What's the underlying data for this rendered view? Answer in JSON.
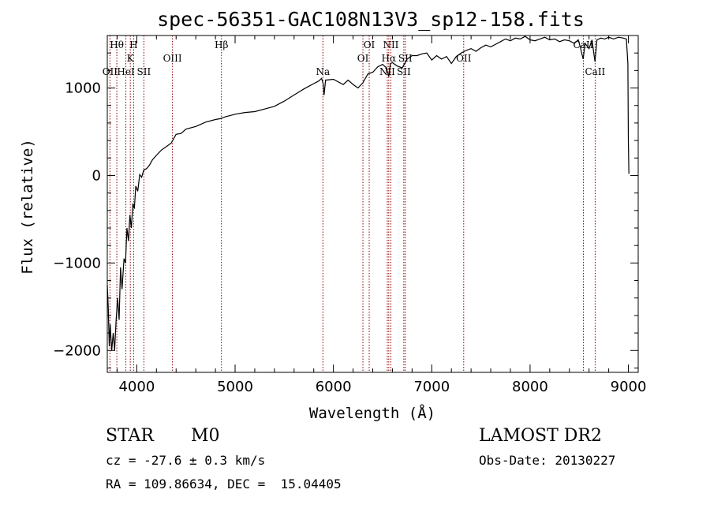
{
  "chart_data": {
    "type": "line",
    "title": "spec-56351-GAC108N13V3_sp12-158.fits",
    "xlabel": "Wavelength (Å)",
    "ylabel": "Flux (relative)",
    "xlim": [
      3700,
      9100
    ],
    "ylim": [
      -2250,
      1600
    ],
    "x_ticks": [
      4000,
      5000,
      6000,
      7000,
      8000,
      9000
    ],
    "y_ticks": [
      -2000,
      -1000,
      0,
      1000
    ],
    "series": [
      {
        "points": [
          [
            3700,
            -1250
          ],
          [
            3710,
            -1500
          ],
          [
            3720,
            -1950
          ],
          [
            3730,
            -1700
          ],
          [
            3745,
            -2000
          ],
          [
            3760,
            -1800
          ],
          [
            3775,
            -2000
          ],
          [
            3790,
            -1650
          ],
          [
            3805,
            -1400
          ],
          [
            3820,
            -1650
          ],
          [
            3835,
            -1050
          ],
          [
            3850,
            -1300
          ],
          [
            3870,
            -950
          ],
          [
            3885,
            -1000
          ],
          [
            3900,
            -600
          ],
          [
            3915,
            -750
          ],
          [
            3930,
            -450
          ],
          [
            3945,
            -600
          ],
          [
            3960,
            -320
          ],
          [
            3975,
            -380
          ],
          [
            3990,
            -120
          ],
          [
            4010,
            -180
          ],
          [
            4030,
            10
          ],
          [
            4050,
            -20
          ],
          [
            4070,
            60
          ],
          [
            4100,
            80
          ],
          [
            4130,
            120
          ],
          [
            4160,
            180
          ],
          [
            4200,
            230
          ],
          [
            4250,
            290
          ],
          [
            4300,
            330
          ],
          [
            4350,
            370
          ],
          [
            4400,
            470
          ],
          [
            4450,
            480
          ],
          [
            4500,
            530
          ],
          [
            4600,
            560
          ],
          [
            4700,
            610
          ],
          [
            4800,
            640
          ],
          [
            4850,
            650
          ],
          [
            4900,
            670
          ],
          [
            5000,
            700
          ],
          [
            5100,
            720
          ],
          [
            5200,
            730
          ],
          [
            5300,
            760
          ],
          [
            5400,
            790
          ],
          [
            5500,
            850
          ],
          [
            5600,
            920
          ],
          [
            5700,
            990
          ],
          [
            5800,
            1050
          ],
          [
            5850,
            1080
          ],
          [
            5880,
            1110
          ],
          [
            5895,
            1050
          ],
          [
            5905,
            920
          ],
          [
            5920,
            1090
          ],
          [
            6000,
            1100
          ],
          [
            6100,
            1040
          ],
          [
            6150,
            1090
          ],
          [
            6200,
            1040
          ],
          [
            6250,
            1000
          ],
          [
            6300,
            1060
          ],
          [
            6350,
            1160
          ],
          [
            6400,
            1180
          ],
          [
            6450,
            1240
          ],
          [
            6500,
            1270
          ],
          [
            6540,
            1230
          ],
          [
            6563,
            1130
          ],
          [
            6580,
            1280
          ],
          [
            6600,
            1290
          ],
          [
            6650,
            1250
          ],
          [
            6700,
            1230
          ],
          [
            6750,
            1330
          ],
          [
            6800,
            1370
          ],
          [
            6850,
            1370
          ],
          [
            6900,
            1390
          ],
          [
            6950,
            1400
          ],
          [
            7000,
            1320
          ],
          [
            7050,
            1370
          ],
          [
            7100,
            1330
          ],
          [
            7150,
            1360
          ],
          [
            7200,
            1280
          ],
          [
            7250,
            1360
          ],
          [
            7300,
            1400
          ],
          [
            7350,
            1430
          ],
          [
            7400,
            1450
          ],
          [
            7450,
            1420
          ],
          [
            7500,
            1460
          ],
          [
            7550,
            1490
          ],
          [
            7600,
            1470
          ],
          [
            7650,
            1500
          ],
          [
            7700,
            1530
          ],
          [
            7750,
            1560
          ],
          [
            7800,
            1540
          ],
          [
            7850,
            1570
          ],
          [
            7900,
            1560
          ],
          [
            7950,
            1590
          ],
          [
            8000,
            1550
          ],
          [
            8050,
            1540
          ],
          [
            8100,
            1560
          ],
          [
            8150,
            1580
          ],
          [
            8200,
            1550
          ],
          [
            8250,
            1560
          ],
          [
            8300,
            1530
          ],
          [
            8350,
            1550
          ],
          [
            8400,
            1540
          ],
          [
            8450,
            1510
          ],
          [
            8490,
            1550
          ],
          [
            8510,
            1470
          ],
          [
            8540,
            1330
          ],
          [
            8560,
            1510
          ],
          [
            8600,
            1450
          ],
          [
            8630,
            1550
          ],
          [
            8660,
            1300
          ],
          [
            8680,
            1550
          ],
          [
            8720,
            1570
          ],
          [
            8760,
            1560
          ],
          [
            8800,
            1580
          ],
          [
            8850,
            1560
          ],
          [
            8900,
            1580
          ],
          [
            8950,
            1570
          ],
          [
            8980,
            1560
          ],
          [
            8995,
            1280
          ],
          [
            9000,
            400
          ],
          [
            9005,
            20
          ]
        ]
      }
    ],
    "line_markers": [
      {
        "label": "Hθ",
        "x": 3797,
        "row": 0
      },
      {
        "label": "OII",
        "x": 3727,
        "row": 2
      },
      {
        "label": "H",
        "x": 3968,
        "row": 0
      },
      {
        "label": "K",
        "x": 3934,
        "row": 1
      },
      {
        "label": "HeI",
        "x": 3889,
        "row": 2
      },
      {
        "label": "SII",
        "x": 4072,
        "row": 2
      },
      {
        "label": "OIII",
        "x": 4363,
        "row": 1
      },
      {
        "label": "Hβ",
        "x": 4861,
        "row": 0
      },
      {
        "label": "Na",
        "x": 5893,
        "row": 2
      },
      {
        "label": "OI",
        "x": 6364,
        "row": 0
      },
      {
        "label": "OI",
        "x": 6300,
        "row": 1
      },
      {
        "label": "NII",
        "x": 6584,
        "row": 0
      },
      {
        "label": "Hα",
        "x": 6563,
        "row": 1
      },
      {
        "label": "NII",
        "x": 6548,
        "row": 2
      },
      {
        "label": "SII",
        "x": 6731,
        "row": 1
      },
      {
        "label": "SII",
        "x": 6716,
        "row": 2
      },
      {
        "label": "OII",
        "x": 7325,
        "row": 1
      },
      {
        "label": "CaII",
        "x": 8542,
        "row": 0
      },
      {
        "label": "CaII",
        "x": 8662,
        "row": 2
      }
    ],
    "marker_color": "#8b0000",
    "line_color": "#000000",
    "grid": false
  },
  "info": {
    "object_class": "STAR",
    "subclass": "M0",
    "redshift": "cz = -27.6 ± 0.3 km/s",
    "coordinates": "RA = 109.86634, DEC =  15.04405",
    "survey": "LAMOST DR2",
    "obs_date": "Obs-Date: 20130227"
  }
}
